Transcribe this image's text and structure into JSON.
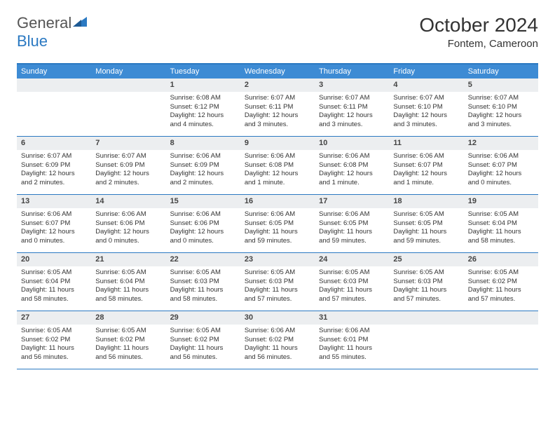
{
  "logo": {
    "text1": "General",
    "text2": "Blue"
  },
  "title": "October 2024",
  "location": "Fontem, Cameroon",
  "colors": {
    "header_bg": "#3d8bd4",
    "border": "#2b79c2",
    "daynum_bg": "#eceef0",
    "text": "#333333",
    "logo_gray": "#555555",
    "logo_blue": "#2b79c2"
  },
  "day_names": [
    "Sunday",
    "Monday",
    "Tuesday",
    "Wednesday",
    "Thursday",
    "Friday",
    "Saturday"
  ],
  "weeks": [
    [
      null,
      null,
      {
        "n": "1",
        "sr": "6:08 AM",
        "ss": "6:12 PM",
        "dl": "12 hours and 4 minutes."
      },
      {
        "n": "2",
        "sr": "6:07 AM",
        "ss": "6:11 PM",
        "dl": "12 hours and 3 minutes."
      },
      {
        "n": "3",
        "sr": "6:07 AM",
        "ss": "6:11 PM",
        "dl": "12 hours and 3 minutes."
      },
      {
        "n": "4",
        "sr": "6:07 AM",
        "ss": "6:10 PM",
        "dl": "12 hours and 3 minutes."
      },
      {
        "n": "5",
        "sr": "6:07 AM",
        "ss": "6:10 PM",
        "dl": "12 hours and 3 minutes."
      }
    ],
    [
      {
        "n": "6",
        "sr": "6:07 AM",
        "ss": "6:09 PM",
        "dl": "12 hours and 2 minutes."
      },
      {
        "n": "7",
        "sr": "6:07 AM",
        "ss": "6:09 PM",
        "dl": "12 hours and 2 minutes."
      },
      {
        "n": "8",
        "sr": "6:06 AM",
        "ss": "6:09 PM",
        "dl": "12 hours and 2 minutes."
      },
      {
        "n": "9",
        "sr": "6:06 AM",
        "ss": "6:08 PM",
        "dl": "12 hours and 1 minute."
      },
      {
        "n": "10",
        "sr": "6:06 AM",
        "ss": "6:08 PM",
        "dl": "12 hours and 1 minute."
      },
      {
        "n": "11",
        "sr": "6:06 AM",
        "ss": "6:07 PM",
        "dl": "12 hours and 1 minute."
      },
      {
        "n": "12",
        "sr": "6:06 AM",
        "ss": "6:07 PM",
        "dl": "12 hours and 0 minutes."
      }
    ],
    [
      {
        "n": "13",
        "sr": "6:06 AM",
        "ss": "6:07 PM",
        "dl": "12 hours and 0 minutes."
      },
      {
        "n": "14",
        "sr": "6:06 AM",
        "ss": "6:06 PM",
        "dl": "12 hours and 0 minutes."
      },
      {
        "n": "15",
        "sr": "6:06 AM",
        "ss": "6:06 PM",
        "dl": "12 hours and 0 minutes."
      },
      {
        "n": "16",
        "sr": "6:06 AM",
        "ss": "6:05 PM",
        "dl": "11 hours and 59 minutes."
      },
      {
        "n": "17",
        "sr": "6:06 AM",
        "ss": "6:05 PM",
        "dl": "11 hours and 59 minutes."
      },
      {
        "n": "18",
        "sr": "6:05 AM",
        "ss": "6:05 PM",
        "dl": "11 hours and 59 minutes."
      },
      {
        "n": "19",
        "sr": "6:05 AM",
        "ss": "6:04 PM",
        "dl": "11 hours and 58 minutes."
      }
    ],
    [
      {
        "n": "20",
        "sr": "6:05 AM",
        "ss": "6:04 PM",
        "dl": "11 hours and 58 minutes."
      },
      {
        "n": "21",
        "sr": "6:05 AM",
        "ss": "6:04 PM",
        "dl": "11 hours and 58 minutes."
      },
      {
        "n": "22",
        "sr": "6:05 AM",
        "ss": "6:03 PM",
        "dl": "11 hours and 58 minutes."
      },
      {
        "n": "23",
        "sr": "6:05 AM",
        "ss": "6:03 PM",
        "dl": "11 hours and 57 minutes."
      },
      {
        "n": "24",
        "sr": "6:05 AM",
        "ss": "6:03 PM",
        "dl": "11 hours and 57 minutes."
      },
      {
        "n": "25",
        "sr": "6:05 AM",
        "ss": "6:03 PM",
        "dl": "11 hours and 57 minutes."
      },
      {
        "n": "26",
        "sr": "6:05 AM",
        "ss": "6:02 PM",
        "dl": "11 hours and 57 minutes."
      }
    ],
    [
      {
        "n": "27",
        "sr": "6:05 AM",
        "ss": "6:02 PM",
        "dl": "11 hours and 56 minutes."
      },
      {
        "n": "28",
        "sr": "6:05 AM",
        "ss": "6:02 PM",
        "dl": "11 hours and 56 minutes."
      },
      {
        "n": "29",
        "sr": "6:05 AM",
        "ss": "6:02 PM",
        "dl": "11 hours and 56 minutes."
      },
      {
        "n": "30",
        "sr": "6:06 AM",
        "ss": "6:02 PM",
        "dl": "11 hours and 56 minutes."
      },
      {
        "n": "31",
        "sr": "6:06 AM",
        "ss": "6:01 PM",
        "dl": "11 hours and 55 minutes."
      },
      null,
      null
    ]
  ],
  "labels": {
    "sunrise": "Sunrise:",
    "sunset": "Sunset:",
    "daylight": "Daylight:"
  }
}
